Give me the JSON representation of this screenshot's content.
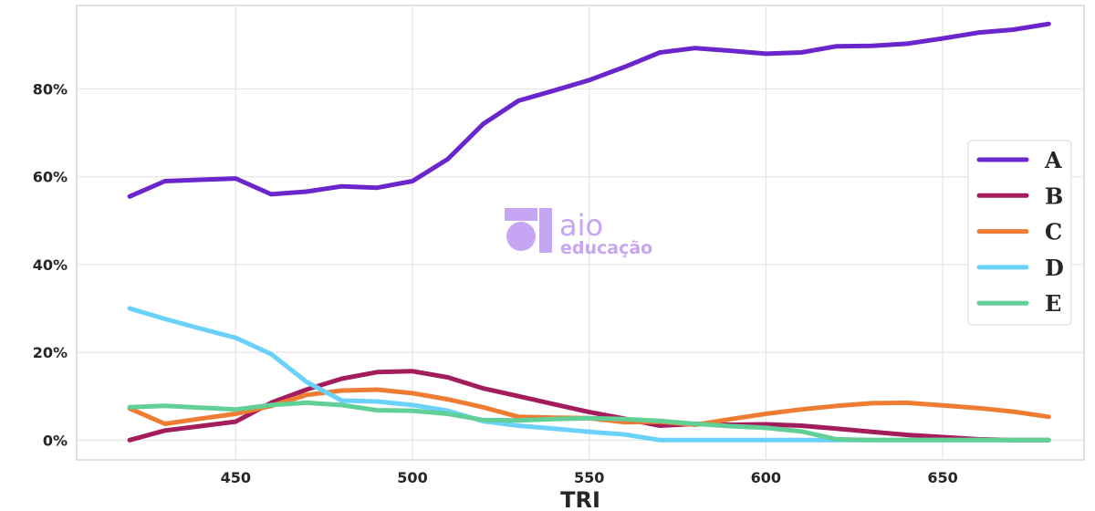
{
  "chart_data": {
    "type": "line",
    "xlabel": "TRI",
    "ylabel": "",
    "title": "",
    "xlim": [
      405,
      690
    ],
    "ylim": [
      -4.5,
      99
    ],
    "xticks": [
      450,
      500,
      550,
      600,
      650
    ],
    "yticks": [
      0,
      20,
      40,
      60,
      80
    ],
    "ytick_format": "percent",
    "grid": true,
    "legend_position": "right",
    "x": [
      420,
      430,
      440,
      450,
      460,
      470,
      480,
      490,
      500,
      510,
      520,
      530,
      540,
      550,
      560,
      570,
      580,
      590,
      600,
      610,
      620,
      630,
      640,
      650,
      660,
      670,
      680
    ],
    "series": [
      {
        "name": "A",
        "color": "#6a25cc",
        "values": [
          55.5,
          59,
          59.3,
          59.6,
          56,
          56.6,
          57.8,
          57.5,
          59,
          64,
          72,
          77.3,
          79.6,
          82,
          85,
          88.3,
          89.3,
          88.7,
          88,
          88.3,
          89.7,
          89.8,
          90.3,
          91.5,
          92.8,
          93.5,
          94.8
        ]
      },
      {
        "name": "B",
        "color": "#a31d5d",
        "values": [
          0,
          2.2,
          3.2,
          4.2,
          8.5,
          11.5,
          14,
          15.5,
          15.7,
          14.3,
          11.8,
          10,
          8.2,
          6.4,
          4.9,
          3.3,
          3.7,
          3.5,
          3.6,
          3.3,
          2.6,
          1.9,
          1.2,
          0.7,
          0.2,
          0,
          0
        ]
      },
      {
        "name": "C",
        "color": "#ee7d33",
        "values": [
          7.2,
          3.7,
          4.9,
          6,
          7.8,
          10.3,
          11.3,
          11.5,
          10.7,
          9.3,
          7.5,
          5.3,
          5.1,
          5,
          4.1,
          4.2,
          3.5,
          4.8,
          6,
          7,
          7.8,
          8.4,
          8.5,
          7.9,
          7.3,
          6.5,
          5.3
        ]
      },
      {
        "name": "D",
        "color": "#6ad2fa",
        "values": [
          30,
          27.6,
          25.4,
          23.3,
          19.6,
          13.3,
          9,
          8.8,
          8,
          6.7,
          4.3,
          3.3,
          2.6,
          1.9,
          1.3,
          0,
          0,
          0,
          0,
          0,
          0,
          0,
          0,
          0,
          0,
          0,
          0
        ]
      },
      {
        "name": "E",
        "color": "#61cf96",
        "values": [
          7.5,
          7.8,
          7.4,
          7,
          8,
          8.5,
          8,
          6.8,
          6.7,
          6,
          4.6,
          4.5,
          4.8,
          5,
          4.8,
          4.4,
          3.7,
          3.2,
          2.8,
          2,
          0.2,
          0,
          0,
          0,
          0,
          0,
          0
        ]
      }
    ]
  },
  "watermark": {
    "line1": "aio",
    "line2": "educação",
    "color": "#c6a6f2"
  }
}
